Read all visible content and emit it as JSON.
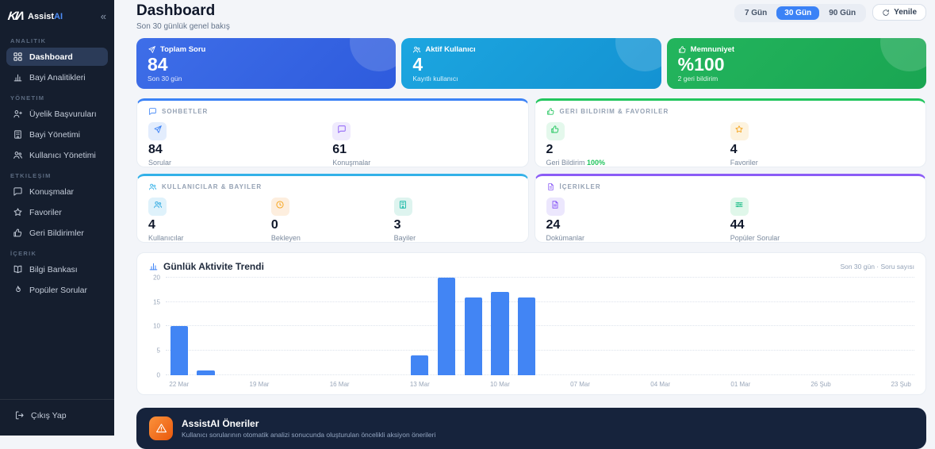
{
  "brand": {
    "logo": "KIΛ",
    "name_primary": "Assist",
    "name_accent": "AI",
    "collapse_glyph": "«"
  },
  "sidebar": {
    "sections": [
      {
        "label": "ANALITIK",
        "items": [
          {
            "label": "Dashboard",
            "icon": "dashboard",
            "active": true
          },
          {
            "label": "Bayi Analitikleri",
            "icon": "bar-chart",
            "active": false
          }
        ]
      },
      {
        "label": "YÖNETIM",
        "items": [
          {
            "label": "Üyelik Başvuruları",
            "icon": "user-plus",
            "active": false
          },
          {
            "label": "Bayi Yönetimi",
            "icon": "building",
            "active": false
          },
          {
            "label": "Kullanıcı Yönetimi",
            "icon": "users",
            "active": false
          }
        ]
      },
      {
        "label": "ETKILEŞIM",
        "items": [
          {
            "label": "Konuşmalar",
            "icon": "chat",
            "active": false
          },
          {
            "label": "Favoriler",
            "icon": "star",
            "active": false
          },
          {
            "label": "Geri Bildirimler",
            "icon": "thumbs-up",
            "active": false
          }
        ]
      },
      {
        "label": "İÇERIK",
        "items": [
          {
            "label": "Bilgi Bankası",
            "icon": "book",
            "active": false
          },
          {
            "label": "Popüler Sorular",
            "icon": "flame",
            "active": false
          }
        ]
      }
    ],
    "logout": {
      "label": "Çıkış Yap",
      "icon": "logout"
    }
  },
  "header": {
    "title": "Dashboard",
    "subtitle": "Son 30 günlük genel bakış",
    "range_buttons": [
      {
        "label": "7 Gün",
        "active": false
      },
      {
        "label": "30 Gün",
        "active": true
      },
      {
        "label": "90 Gün",
        "active": false
      }
    ],
    "refresh_label": "Yenile"
  },
  "hero_cards": [
    {
      "title": "Toplam Soru",
      "value": "84",
      "caption": "Son 30 gün",
      "icon": "send",
      "color_from": "#3e6ee8",
      "color_to": "#2e5bdd"
    },
    {
      "title": "Aktif Kullanıcı",
      "value": "4",
      "caption": "Kayıtlı kullanıcı",
      "icon": "users",
      "color_from": "#1ca6e0",
      "color_to": "#1492d2"
    },
    {
      "title": "Memnuniyet",
      "value": "%100",
      "caption": "2 geri bildirim",
      "icon": "thumbs-up",
      "color_from": "#23b55d",
      "color_to": "#1aa552"
    }
  ],
  "stat_cards": [
    {
      "title": "SOHBETLER",
      "icon": "chat",
      "accent": "#3b82f6",
      "stats": [
        {
          "icon": "send",
          "icon_bg": "#e3edfd",
          "icon_color": "#3b82f6",
          "value": "84",
          "label": "Sorular",
          "label_suffix": ""
        },
        {
          "icon": "chat",
          "icon_bg": "#efeafd",
          "icon_color": "#8b5cf6",
          "value": "61",
          "label": "Konuşmalar",
          "label_suffix": ""
        }
      ]
    },
    {
      "title": "GERI BILDIRIM & FAVORILER",
      "icon": "thumbs-up",
      "accent": "#22c55e",
      "stats": [
        {
          "icon": "thumbs-up",
          "icon_bg": "#e4f8ec",
          "icon_color": "#22c55e",
          "value": "2",
          "label": "Geri Bildirim",
          "label_suffix": "100%"
        },
        {
          "icon": "star",
          "icon_bg": "#fdf3df",
          "icon_color": "#f5a623",
          "value": "4",
          "label": "Favoriler",
          "label_suffix": ""
        }
      ]
    },
    {
      "title": "KULLANICILAR & BAYILER",
      "icon": "users",
      "accent": "#33b1e8",
      "stats": [
        {
          "icon": "users",
          "icon_bg": "#dff2fb",
          "icon_color": "#2da9e1",
          "value": "4",
          "label": "Kullanıcılar",
          "label_suffix": ""
        },
        {
          "icon": "clock",
          "icon_bg": "#fdeede",
          "icon_color": "#f59e0b",
          "value": "0",
          "label": "Bekleyen",
          "label_suffix": ""
        },
        {
          "icon": "building",
          "icon_bg": "#def4ef",
          "icon_color": "#14b8a6",
          "value": "3",
          "label": "Bayiler",
          "label_suffix": ""
        }
      ]
    },
    {
      "title": "İÇERIKLER",
      "icon": "document",
      "accent": "#8b5cf6",
      "stats": [
        {
          "icon": "document",
          "icon_bg": "#ece7fd",
          "icon_color": "#8b5cf6",
          "value": "24",
          "label": "Dokümanlar",
          "label_suffix": ""
        },
        {
          "icon": "sliders",
          "icon_bg": "#e0f7ea",
          "icon_color": "#10b981",
          "value": "44",
          "label": "Popüler Sorular",
          "label_suffix": ""
        }
      ]
    }
  ],
  "chart_card": {
    "title": "Günlük Aktivite Trendi",
    "icon": "bar-chart",
    "meta": "Son 30 gün · Soru sayısı"
  },
  "chart_data": {
    "type": "bar",
    "title": "Günlük Aktivite Trendi",
    "xlabel": "",
    "ylabel": "Soru sayısı",
    "x": [
      "22 Mar",
      "21 Mar",
      "20 Mar",
      "19 Mar",
      "18 Mar",
      "17 Mar",
      "16 Mar",
      "15 Mar",
      "14 Mar",
      "13 Mar",
      "12 Mar",
      "11 Mar",
      "10 Mar",
      "09 Mar",
      "08 Mar",
      "07 Mar",
      "06 Mar",
      "05 Mar",
      "04 Mar",
      "03 Mar",
      "02 Mar",
      "01 Mar",
      "28 Şub",
      "27 Şub",
      "26 Şub",
      "25 Şub",
      "24 Şub",
      "23 Şub"
    ],
    "values": [
      10,
      1,
      0,
      0,
      0,
      0,
      0,
      0,
      0,
      4,
      20,
      16,
      17,
      16,
      0,
      0,
      0,
      0,
      0,
      0,
      0,
      0,
      0,
      0,
      0,
      0,
      0,
      0
    ],
    "shown_x_ticks": [
      "22 Mar",
      "19 Mar",
      "16 Mar",
      "13 Mar",
      "10 Mar",
      "07 Mar",
      "04 Mar",
      "01 Mar",
      "26 Şub",
      "23 Şub"
    ],
    "x_tick_every": 3,
    "y_ticks": [
      0,
      5,
      10,
      15,
      20
    ],
    "ylim": [
      0,
      20
    ],
    "bar_color": "#4285f4",
    "grid": "dotted-horizontal",
    "legend": "none"
  },
  "suggestions_card": {
    "title": "AssistAI Öneriler",
    "subtitle": "Kullanıcı sorularının otomatik analizi sonucunda oluşturulan öncelikli aksiyon önerileri",
    "icon": "warning"
  }
}
